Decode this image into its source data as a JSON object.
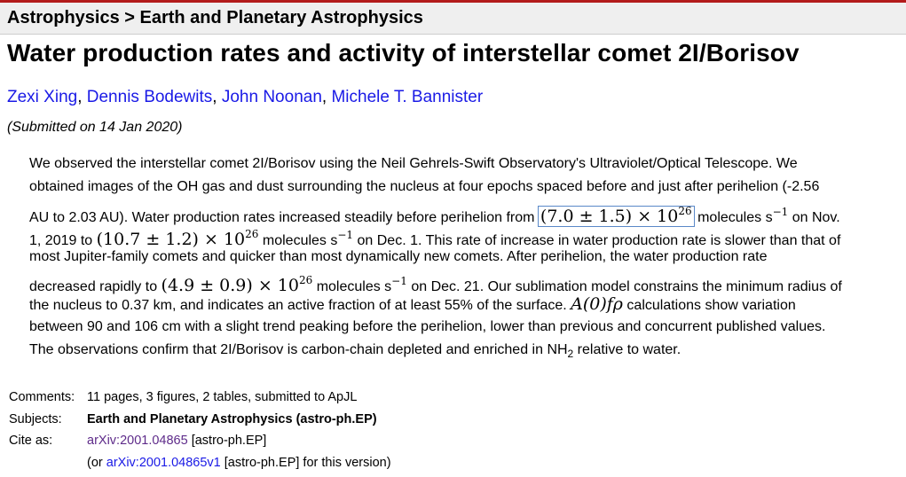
{
  "breadcrumb": "Astrophysics > Earth and Planetary Astrophysics",
  "title": "Water production rates and activity of interstellar comet 2I/Borisov",
  "authors": [
    "Zexi Xing",
    "Dennis Bodewits",
    "John Noonan",
    "Michele T. Bannister"
  ],
  "author_separator": ", ",
  "submitted": "(Submitted on 14 Jan 2020)",
  "abstract": {
    "l1": "We observed the interstellar comet 2I/Borisov using the Neil Gehrels-Swift Observatory's Ultraviolet/Optical Telescope. We",
    "l2": "obtained images of the OH gas and dust surrounding the nucleus at four epochs spaced before and just after perihelion (-2.56",
    "l3a": "AU to 2.03 AU). Water production rates increased steadily before perihelion from ",
    "m1_base": "(7.0 ± 1.5) × 10",
    "m1_exp": "26",
    "l3b": " molecules s",
    "neg1": "−1",
    "l3c": " on Nov.",
    "l4a": "1, 2019 to ",
    "m2_base": "(10.7 ± 1.2) × 10",
    "m2_exp": "26",
    "l4b": " molecules s",
    "l4c": " on Dec. 1. This rate of increase in water production rate is slower than that of",
    "l5": "most Jupiter-family comets and quicker than most dynamically new comets. After perihelion, the water production rate",
    "l6a": "decreased rapidly to ",
    "m3_base": "(4.9 ± 0.9) × 10",
    "m3_exp": "26",
    "l6b": " molecules s",
    "l6c": " on Dec. 21. Our sublimation model constrains the minimum radius of",
    "l7a": "the nucleus to 0.37 km, and indicates an active fraction of at least 55% of the surface. ",
    "m4": "A(0)fρ",
    "l7b": " calculations show variation",
    "l8": "between 90 and 106 cm with a slight trend peaking before the perihelion, lower than previous and concurrent published values.",
    "l9a": "The observations confirm that 2I/Borisov is carbon-chain depleted and enriched in NH",
    "l9_sub": "2",
    "l9b": " relative to water."
  },
  "meta": {
    "comments_label": "Comments:",
    "comments": "11 pages, 3 figures, 2 tables, submitted to ApJL",
    "subjects_label": "Subjects:",
    "subjects": "Earth and Planetary Astrophysics (astro-ph.EP)",
    "cite_label": "Cite as:",
    "cite_link": "arXiv:2001.04865",
    "cite_suffix": " [astro-ph.EP]",
    "version_prefix": "(or ",
    "version_link": "arXiv:2001.04865v1",
    "version_suffix": " [astro-ph.EP] for this version)"
  },
  "colors": {
    "accent": "#b31b1b",
    "link": "#1a1ae6",
    "visited_link": "#5e2b8a",
    "header_bg": "#efefef"
  }
}
